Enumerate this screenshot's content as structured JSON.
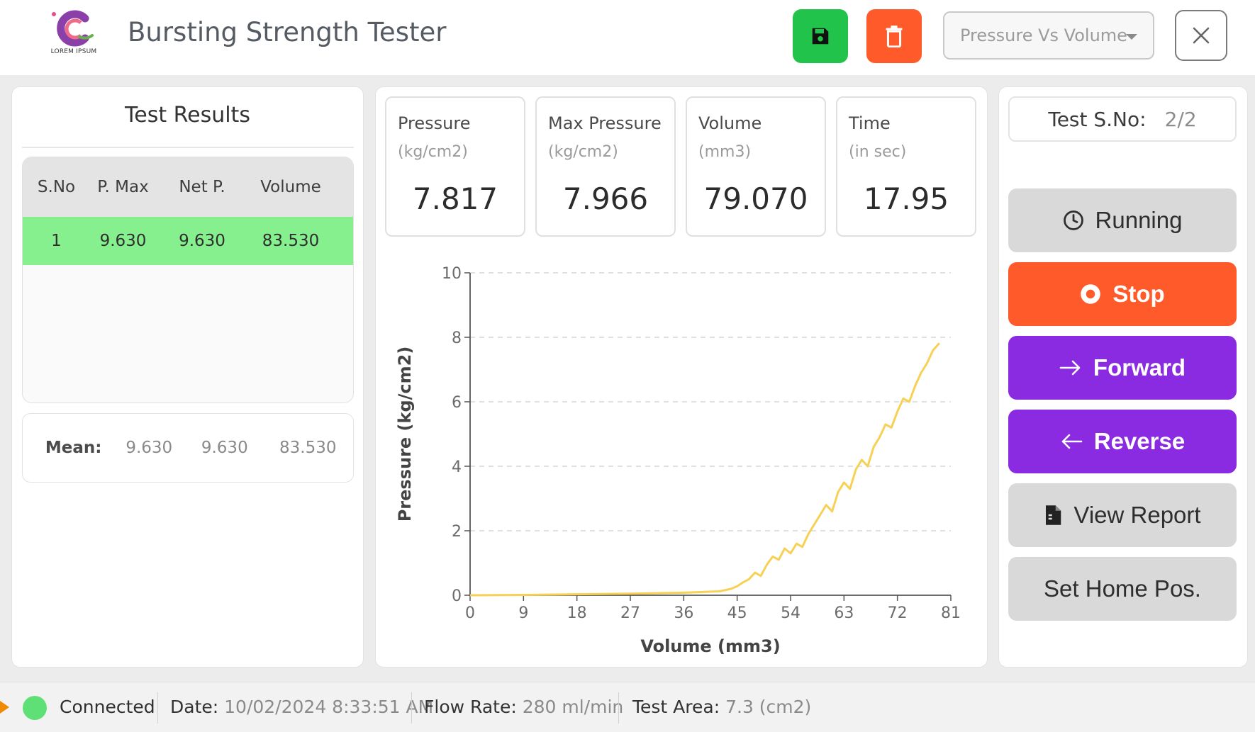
{
  "header": {
    "logo_text": "LOREM IPSUM",
    "title": "Bursting Strength Tester",
    "save_icon": "floppy-disk-icon",
    "delete_icon": "trash-icon",
    "view_select": "Pressure Vs Volume",
    "close_icon": "close-icon"
  },
  "results": {
    "title": "Test Results",
    "columns": [
      "S.No",
      "P. Max",
      "Net P.",
      "Volume"
    ],
    "rows": [
      {
        "sno": "1",
        "pmax": "9.630",
        "netp": "9.630",
        "volume": "83.530"
      }
    ],
    "mean": {
      "label": "Mean:",
      "pmax": "9.630",
      "netp": "9.630",
      "volume": "83.530"
    },
    "row_highlight_color": "#86f08e"
  },
  "metrics": [
    {
      "label": "Pressure",
      "unit": "(kg/cm2)",
      "value": "7.817"
    },
    {
      "label": "Max Pressure",
      "unit": "(kg/cm2)",
      "value": "7.966"
    },
    {
      "label": "Volume",
      "unit": "(mm3)",
      "value": "79.070"
    },
    {
      "label": "Time",
      "unit": "(in sec)",
      "value": "17.95"
    }
  ],
  "chart_data": {
    "type": "line",
    "title": "",
    "xlabel": "Volume (mm3)",
    "ylabel": "Pressure (kg/cm2)",
    "xlim": [
      0,
      81
    ],
    "ylim": [
      0,
      10
    ],
    "x_ticks": [
      "0",
      "9",
      "18",
      "27",
      "36",
      "45",
      "54",
      "63",
      "72",
      "81"
    ],
    "y_ticks": [
      "0",
      "2",
      "4",
      "6",
      "8",
      "10"
    ],
    "grid": "horizontal-dashed",
    "line_color": "#f7d155",
    "series": [
      {
        "x": [
          0,
          9,
          18,
          27,
          36,
          42,
          44,
          45,
          46,
          47,
          48,
          49,
          50,
          51,
          52,
          53,
          54,
          55,
          56,
          57,
          58,
          59,
          60,
          61,
          62,
          63,
          64,
          65,
          66,
          67,
          68,
          69,
          70,
          71,
          72,
          73,
          74,
          75,
          76,
          77,
          78,
          79.07
        ],
        "y": [
          0,
          0.01,
          0.03,
          0.05,
          0.08,
          0.12,
          0.2,
          0.28,
          0.4,
          0.5,
          0.7,
          0.6,
          0.95,
          1.2,
          1.1,
          1.45,
          1.3,
          1.6,
          1.5,
          1.9,
          2.2,
          2.5,
          2.8,
          2.6,
          3.2,
          3.5,
          3.3,
          3.9,
          4.2,
          4.0,
          4.6,
          4.9,
          5.3,
          5.2,
          5.7,
          6.1,
          6.0,
          6.5,
          6.9,
          7.2,
          7.6,
          7.82
        ]
      }
    ]
  },
  "controls": {
    "sno_label": "Test S.No:",
    "sno_value": "2/2",
    "running": "Running",
    "stop": "Stop",
    "forward": "Forward",
    "reverse": "Reverse",
    "view_report": "View Report",
    "set_home": "Set Home Pos.",
    "stop_color": "#ff5a2a",
    "forward_color": "#8a2be2"
  },
  "status": {
    "connection": "Connected",
    "date_label": "Date:",
    "date_value": "10/02/2024 8:33:51 AM",
    "flow_label": "Flow Rate:",
    "flow_value": "280 ml/min",
    "area_label": "Test Area:",
    "area_value": "7.3 (cm2)",
    "connected_color": "#5fe077"
  }
}
